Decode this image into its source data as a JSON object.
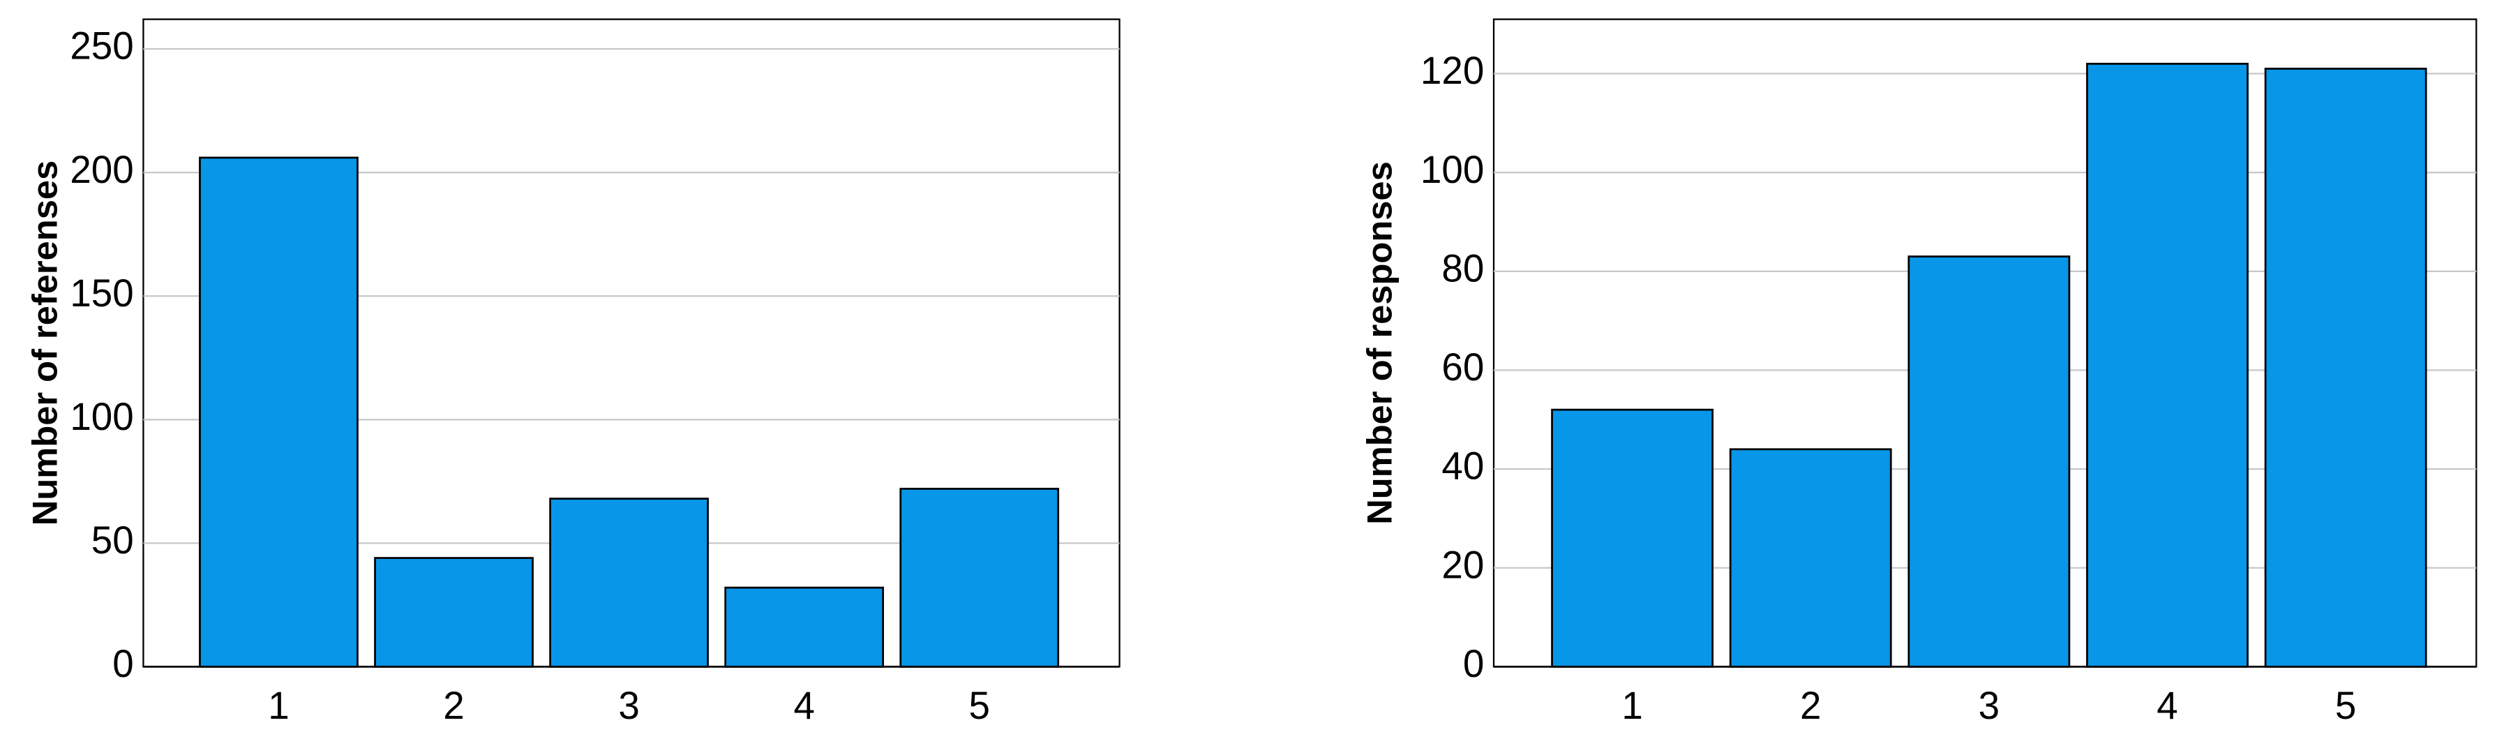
{
  "chart_data": [
    {
      "type": "bar",
      "ylabel": "Number of referenses",
      "categories": [
        "1",
        "2",
        "3",
        "4",
        "5"
      ],
      "values": [
        206,
        44,
        68,
        32,
        72
      ],
      "color": "#0896e8",
      "ylim": [
        0,
        262
      ],
      "yticks": [
        0,
        50,
        100,
        150,
        200,
        250
      ],
      "grid": true
    },
    {
      "type": "bar",
      "ylabel": "Number of responses",
      "categories": [
        "1",
        "2",
        "3",
        "4",
        "5"
      ],
      "values": [
        52,
        44,
        83,
        122,
        121
      ],
      "color": "#0896e8",
      "ylim": [
        0,
        131
      ],
      "yticks": [
        0,
        20,
        40,
        60,
        80,
        100,
        120
      ],
      "grid": true
    }
  ]
}
